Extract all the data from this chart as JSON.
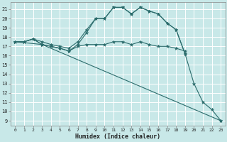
{
  "xlabel": "Humidex (Indice chaleur)",
  "bg_color": "#c8e8e8",
  "grid_color": "#ffffff",
  "line_color": "#2a6b6b",
  "xlim": [
    -0.5,
    23.5
  ],
  "ylim": [
    8.5,
    21.8
  ],
  "xticks": [
    0,
    1,
    2,
    3,
    4,
    5,
    6,
    7,
    8,
    9,
    10,
    11,
    12,
    13,
    14,
    15,
    16,
    17,
    18,
    19,
    20,
    21,
    22,
    23
  ],
  "yticks": [
    9,
    10,
    11,
    12,
    13,
    14,
    15,
    16,
    17,
    18,
    19,
    20,
    21
  ],
  "lines": [
    {
      "x": [
        0,
        1,
        2,
        3,
        4,
        5,
        6,
        7,
        8,
        9,
        10,
        11,
        12,
        13,
        14,
        15,
        16,
        17,
        18,
        19,
        20,
        21,
        22,
        23
      ],
      "y": [
        17.5,
        17.5,
        17.8,
        17.2,
        17.0,
        16.8,
        16.5,
        17.2,
        18.5,
        20.0,
        20.0,
        21.2,
        21.2,
        20.5,
        21.2,
        20.8,
        20.5,
        19.5,
        18.8,
        16.2,
        13.0,
        11.0,
        10.2,
        9.0
      ]
    },
    {
      "x": [
        0,
        1,
        2,
        3,
        4,
        5,
        6,
        7,
        8,
        9,
        10,
        11,
        12,
        13,
        14,
        15,
        16,
        17,
        18,
        19
      ],
      "y": [
        17.5,
        17.5,
        17.8,
        17.2,
        17.0,
        16.8,
        16.5,
        17.0,
        17.2,
        17.2,
        17.2,
        17.5,
        17.5,
        17.2,
        17.5,
        17.2,
        17.0,
        17.0,
        16.8,
        16.5
      ]
    },
    {
      "x": [
        0,
        3,
        23
      ],
      "y": [
        17.5,
        17.2,
        9.0
      ]
    },
    {
      "x": [
        0,
        1,
        2,
        3,
        4,
        5,
        6,
        7,
        8,
        9,
        10,
        11,
        12,
        13,
        14,
        15,
        16,
        17,
        18,
        19
      ],
      "y": [
        17.5,
        17.5,
        17.8,
        17.5,
        17.2,
        17.0,
        16.8,
        17.5,
        18.8,
        20.0,
        20.0,
        21.2,
        21.2,
        20.5,
        21.2,
        20.8,
        20.5,
        19.5,
        18.8,
        16.2
      ]
    }
  ]
}
